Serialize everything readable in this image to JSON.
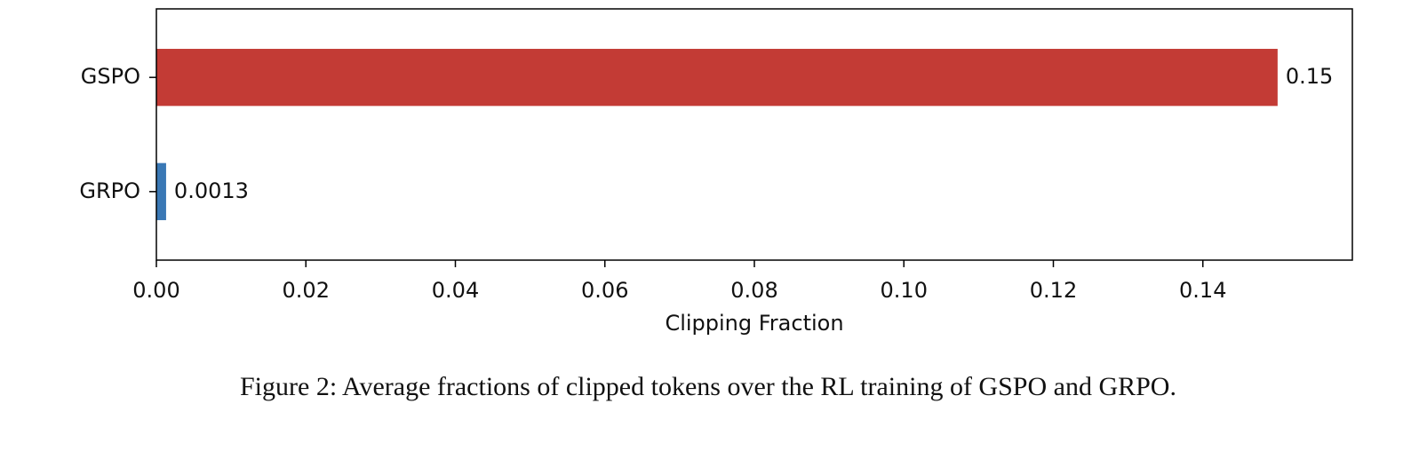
{
  "chart_data": {
    "type": "barh",
    "categories": [
      "GSPO",
      "GRPO"
    ],
    "values": [
      0.15,
      0.0013
    ],
    "colors": [
      "#c33b35",
      "#3a78b5"
    ],
    "xlabel": "Clipping Fraction",
    "xlim": [
      0,
      0.16
    ],
    "xticks": [
      {
        "value": 0,
        "label": "0.00"
      },
      {
        "value": 0.02,
        "label": "0.02"
      },
      {
        "value": 0.04,
        "label": "0.04"
      },
      {
        "value": 0.06,
        "label": "0.06"
      },
      {
        "value": 0.08,
        "label": "0.08"
      },
      {
        "value": 0.1,
        "label": "0.10"
      },
      {
        "value": 0.12,
        "label": "0.12"
      },
      {
        "value": 0.14,
        "label": "0.14"
      }
    ],
    "grid": false,
    "caption": "Figure 2: Average fractions of clipped tokens over the RL training of GSPO and GRPO."
  }
}
